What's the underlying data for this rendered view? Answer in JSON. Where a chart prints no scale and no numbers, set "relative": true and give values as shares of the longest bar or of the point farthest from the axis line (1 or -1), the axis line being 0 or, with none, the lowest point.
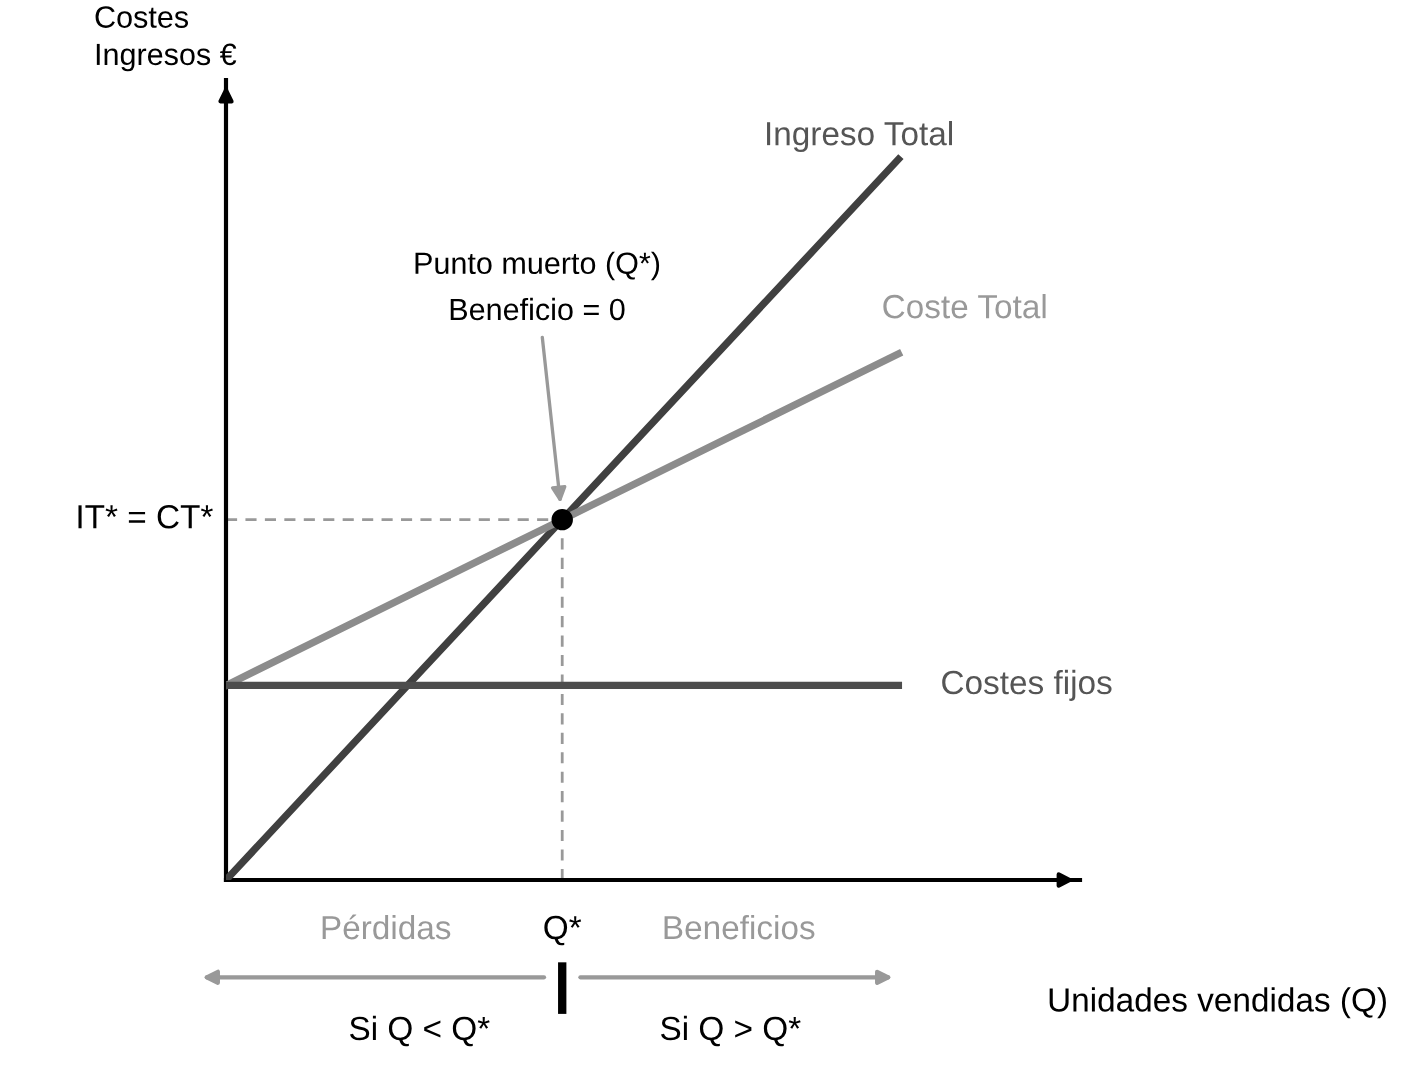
{
  "chart_data": {
    "type": "line",
    "relative": true,
    "xlabel": "Unidades vendidas (Q)",
    "ylabel": "Costes\nIngresos €",
    "categories": [
      null,
      null,
      null,
      null,
      null,
      null,
      null,
      null,
      null
    ],
    "series": [
      {
        "name": "Ingreso Total",
        "color": "#404040",
        "values": [
          0,
          0.125,
          0.25,
          0.375,
          0.5,
          0.625,
          0.75,
          0.875,
          1
        ]
      },
      {
        "name": "Coste Total",
        "color": "#8c8c8c",
        "values": [
          0.27,
          0.3275,
          0.385,
          0.4425,
          0.5,
          0.5575,
          0.615,
          0.6725,
          0.73
        ]
      },
      {
        "name": "Costes fijos",
        "color": "#4d4d4d",
        "values": [
          0.27,
          0.27,
          0.27,
          0.27,
          0.27,
          0.27,
          0.27,
          0.27,
          0.27
        ]
      }
    ],
    "annotations": [
      "Punto muerto (Q*)\nBeneficio = 0",
      "Pérdidas",
      "Beneficios",
      "Si Q < Q*",
      "Si Q > Q*",
      "IT* = CT*",
      "Q*"
    ]
  }
}
